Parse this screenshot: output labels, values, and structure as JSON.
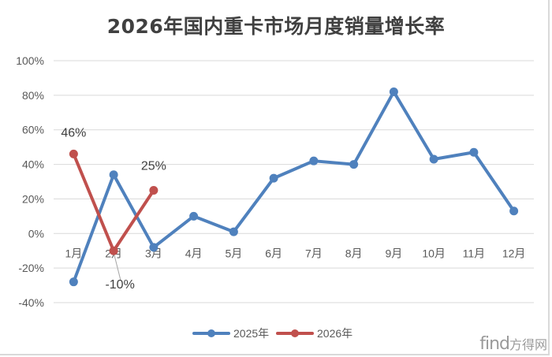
{
  "chart_data": {
    "type": "line",
    "title": "2026年国内重卡市场月度销量增长率",
    "xlabel": "",
    "ylabel": "",
    "categories": [
      "1月",
      "2月",
      "3月",
      "4月",
      "5月",
      "6月",
      "7月",
      "8月",
      "9月",
      "10月",
      "11月",
      "12月"
    ],
    "y_ticks": [
      "100%",
      "80%",
      "60%",
      "40%",
      "20%",
      "0%",
      "-20%",
      "-40%"
    ],
    "y_tick_values": [
      100,
      80,
      60,
      40,
      20,
      0,
      -20,
      -40
    ],
    "ylim": [
      -40,
      100
    ],
    "grid": true,
    "legend_position": "bottom",
    "series": [
      {
        "name": "2025年",
        "color": "#4f81bd",
        "values": [
          -28,
          34,
          -8,
          10,
          1,
          32,
          42,
          40,
          82,
          43,
          47,
          13
        ],
        "labels": []
      },
      {
        "name": "2026年",
        "color": "#c0504d",
        "values": [
          46,
          -10,
          25
        ],
        "labels": [
          "46%",
          "-10%",
          "25%"
        ]
      }
    ]
  },
  "legend": {
    "items": [
      {
        "label": "2025年",
        "color": "#4f81bd"
      },
      {
        "label": "2026年",
        "color": "#c0504d"
      }
    ]
  },
  "watermark": {
    "brand": "find",
    "suffix": "方得网"
  }
}
